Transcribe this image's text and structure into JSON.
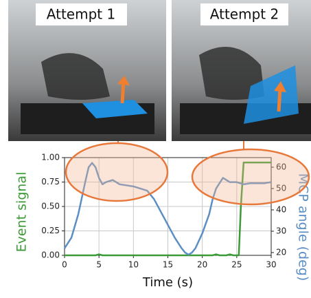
{
  "photo_labels": [
    "Attempt 1",
    "Attempt 2"
  ],
  "chart_data": {
    "type": "line",
    "xlabel": "Time (s)",
    "ylabel": "Event signal",
    "y2label": "MCP angle (deg)",
    "xlim": [
      0,
      30
    ],
    "ylim": [
      0,
      1
    ],
    "y2lim": [
      18.7,
      64.5
    ],
    "xticks": [
      0,
      5,
      10,
      15,
      20,
      25,
      30
    ],
    "yticks": [
      {
        "value": 0,
        "label": "0.00"
      },
      {
        "value": 0.25,
        "label": "0.25"
      },
      {
        "value": 0.5,
        "label": "0.50"
      },
      {
        "value": 0.75,
        "label": "0.75"
      },
      {
        "value": 1,
        "label": "1.00"
      }
    ],
    "y2ticks": [
      20,
      30,
      40,
      50,
      60
    ],
    "grid": true,
    "series": [
      {
        "color": "#3a9a35",
        "x": [
          0,
          4.5,
          5,
          5.5,
          21.5,
          22,
          22.5,
          23.5,
          24,
          24.5,
          25.3,
          25.6,
          26,
          27,
          30
        ],
        "values": [
          0,
          0,
          0.01,
          0,
          0,
          0.01,
          0,
          0,
          0.01,
          0,
          0,
          0.5,
          0.95,
          0.95,
          0.95
        ]
      },
      {
        "color": "#5b8fc4",
        "axis": "y2",
        "x": [
          0,
          1,
          2,
          3,
          3.5,
          4,
          4.5,
          5,
          5.5,
          6,
          7,
          7.5,
          8,
          9,
          10,
          11,
          12,
          13,
          14,
          15,
          16,
          17,
          17.5,
          18,
          18.5,
          19,
          20,
          21,
          21.5,
          22,
          23,
          23.5,
          24,
          25,
          26,
          27,
          28,
          29,
          30
        ],
        "values": [
          22,
          27,
          38,
          53,
          60,
          62,
          60,
          55,
          52,
          53,
          54,
          53,
          52,
          51.5,
          51,
          50,
          49,
          45,
          39,
          33,
          27,
          22,
          20,
          19,
          20,
          22,
          29,
          38,
          45,
          50,
          55,
          54,
          53,
          53,
          52,
          52.5,
          52.5,
          52.5,
          53
        ]
      }
    ]
  }
}
